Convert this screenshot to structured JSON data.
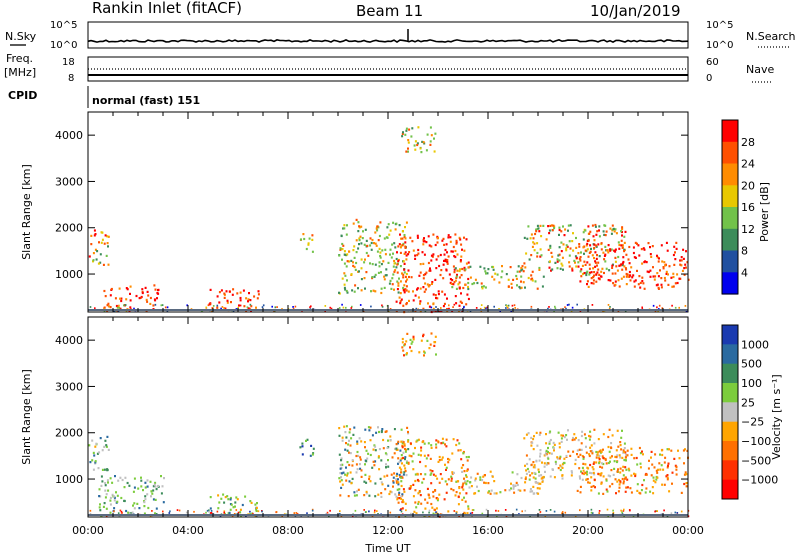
{
  "header": {
    "title": "Rankin Inlet (fitACF)",
    "beam": "Beam 11",
    "date": "10/Jan/2019"
  },
  "summary_panels": {
    "nsky_label": "N.Sky",
    "nsky_ticks": [
      "10^5",
      "10^0"
    ],
    "nsearch_label": "N.Search",
    "freq_label_1": "Freq.",
    "freq_label_2": "[MHz]",
    "freq_ticks": [
      "18",
      "8"
    ],
    "nave_label": "Nave",
    "nave_ticks": [
      "60",
      "0"
    ],
    "cpid_label": "CPID",
    "cpid_value": "normal (fast) 151"
  },
  "colors": {
    "power_scale": [
      "#0000ee",
      "#2050a0",
      "#3c8c5a",
      "#72c24a",
      "#e8c800",
      "#ff8c00",
      "#ff5000",
      "#ff0000"
    ],
    "velocity_scale": [
      "#1a3ab0",
      "#2a6aa0",
      "#3c8c5a",
      "#7ccc3c",
      "#c0c0c0",
      "#ffa500",
      "#ff7000",
      "#ff3000",
      "#ff0000"
    ],
    "ground_scatter": "#b4b4b4"
  },
  "chart_data": [
    {
      "type": "heatmap",
      "name": "power",
      "xlabel": "",
      "ylabel": "Slant Range [km]",
      "xlim": [
        0,
        24
      ],
      "ylim": [
        180,
        4500
      ],
      "yticks": [
        "1000",
        "2000",
        "3000",
        "4000"
      ],
      "colorbar": {
        "label": "Power [dB]",
        "ticks": [
          "4",
          "8",
          "12",
          "16",
          "20",
          "24",
          "28"
        ]
      },
      "regions": [
        {
          "t0": 0.0,
          "t1": 0.8,
          "r0": 1200,
          "r1": 2000,
          "level": "medium-high"
        },
        {
          "t0": 0.6,
          "t1": 2.8,
          "r0": 220,
          "r1": 800,
          "level": "high"
        },
        {
          "t0": 4.8,
          "t1": 6.8,
          "r0": 220,
          "r1": 700,
          "level": "high"
        },
        {
          "t0": 8.4,
          "t1": 9.0,
          "r0": 1500,
          "r1": 1900,
          "level": "medium"
        },
        {
          "t0": 10.0,
          "t1": 12.8,
          "r0": 600,
          "r1": 2200,
          "level": "medium"
        },
        {
          "t0": 12.5,
          "t1": 13.9,
          "r0": 3650,
          "r1": 4200,
          "level": "medium"
        },
        {
          "t0": 12.3,
          "t1": 15.2,
          "r0": 200,
          "r1": 1900,
          "level": "high"
        },
        {
          "t0": 14.5,
          "t1": 18.2,
          "r0": 700,
          "r1": 1200,
          "level": "medium"
        },
        {
          "t0": 17.4,
          "t1": 21.5,
          "r0": 1000,
          "r1": 2100,
          "level": "medium-high"
        },
        {
          "t0": 19.5,
          "t1": 24.0,
          "r0": 700,
          "r1": 1700,
          "level": "high"
        }
      ]
    },
    {
      "type": "heatmap",
      "name": "velocity",
      "xlabel": "Time UT",
      "ylabel": "Slant Range [km]",
      "xlim": [
        0,
        24
      ],
      "ylim": [
        180,
        4500
      ],
      "xticks": [
        "00:00",
        "04:00",
        "08:00",
        "12:00",
        "16:00",
        "20:00",
        "00:00"
      ],
      "yticks": [
        "1000",
        "2000",
        "3000",
        "4000"
      ],
      "colorbar": {
        "label": "Velocity [m s⁻¹]",
        "ticks": [
          "1000",
          "500",
          "100",
          "25",
          "−25",
          "−100",
          "−500",
          "−1000"
        ]
      },
      "regions": [
        {
          "t0": 0.0,
          "t1": 0.8,
          "r0": 1200,
          "r1": 2000,
          "level": "mixed"
        },
        {
          "t0": 0.4,
          "t1": 3.0,
          "r0": 220,
          "r1": 1100,
          "level": "green-grey"
        },
        {
          "t0": 4.8,
          "t1": 6.8,
          "r0": 220,
          "r1": 700,
          "level": "green"
        },
        {
          "t0": 8.4,
          "t1": 9.0,
          "r0": 1500,
          "r1": 1900,
          "level": "blue-green"
        },
        {
          "t0": 10.0,
          "t1": 12.8,
          "r0": 600,
          "r1": 2200,
          "level": "green-orange"
        },
        {
          "t0": 12.5,
          "t1": 13.9,
          "r0": 3650,
          "r1": 4200,
          "level": "orange"
        },
        {
          "t0": 12.3,
          "t1": 15.2,
          "r0": 200,
          "r1": 1900,
          "level": "orange"
        },
        {
          "t0": 14.5,
          "t1": 18.2,
          "r0": 700,
          "r1": 1200,
          "level": "orange-grey"
        },
        {
          "t0": 17.4,
          "t1": 21.5,
          "r0": 1000,
          "r1": 2100,
          "level": "grey-orange"
        },
        {
          "t0": 19.5,
          "t1": 24.0,
          "r0": 700,
          "r1": 1700,
          "level": "orange"
        }
      ]
    }
  ]
}
